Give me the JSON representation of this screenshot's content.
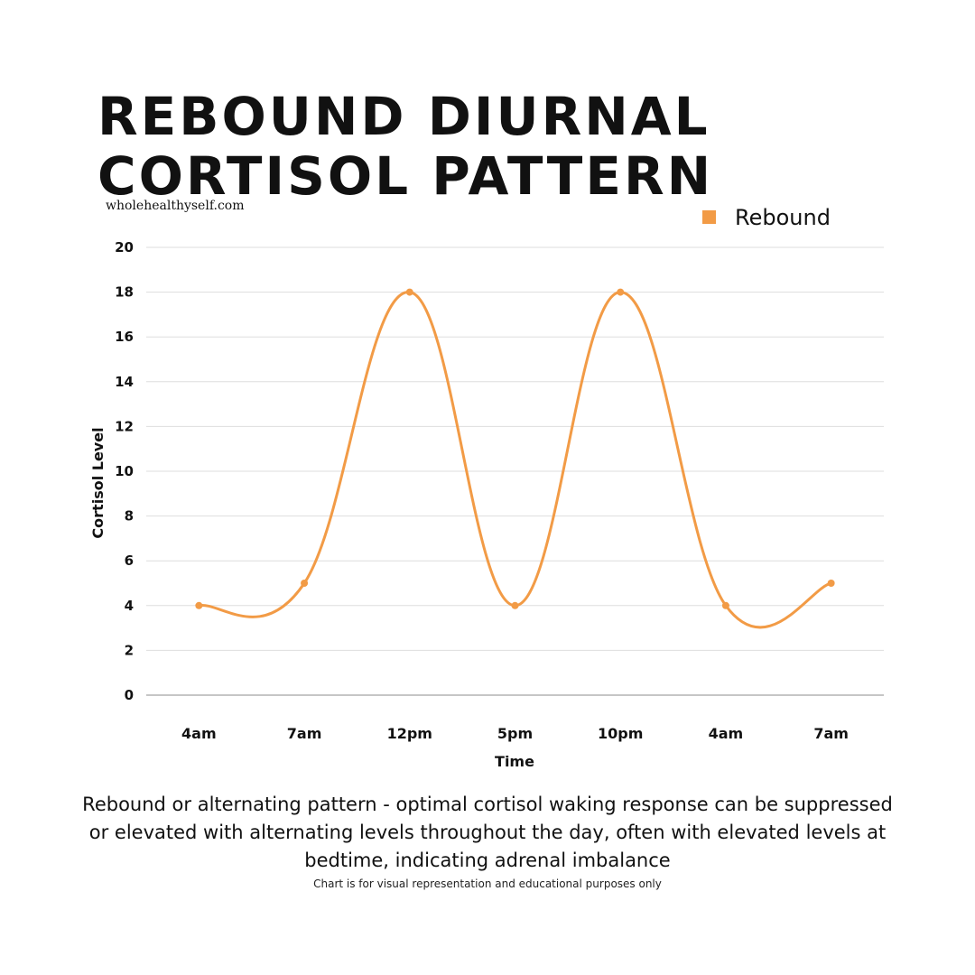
{
  "header": {
    "title_line1": "REBOUND DIURNAL",
    "title_line2": "CORTISOL PATTERN",
    "site": "wholehealthyself.com"
  },
  "chart_data": {
    "type": "line",
    "categories": [
      "4am",
      "7am",
      "12pm",
      "5pm",
      "10pm",
      "4am",
      "7am"
    ],
    "series": [
      {
        "name": "Rebound",
        "values": [
          4,
          5,
          18,
          4,
          18,
          4,
          5
        ],
        "color": "#F29B46"
      }
    ],
    "xlabel": "Time",
    "ylabel": "Cortisol Level",
    "ylim": [
      0,
      20
    ],
    "yticks": [
      0,
      2,
      4,
      6,
      8,
      10,
      12,
      14,
      16,
      18,
      20
    ],
    "grid": true,
    "legend": "top-right",
    "smooth": true
  },
  "caption": {
    "text": "Rebound or alternating pattern - optimal cortisol waking response can be suppressed or elevated with alternating levels throughout the day, often with elevated levels at bedtime, indicating adrenal imbalance",
    "disclaimer": "Chart is for visual representation and educational purposes only"
  }
}
